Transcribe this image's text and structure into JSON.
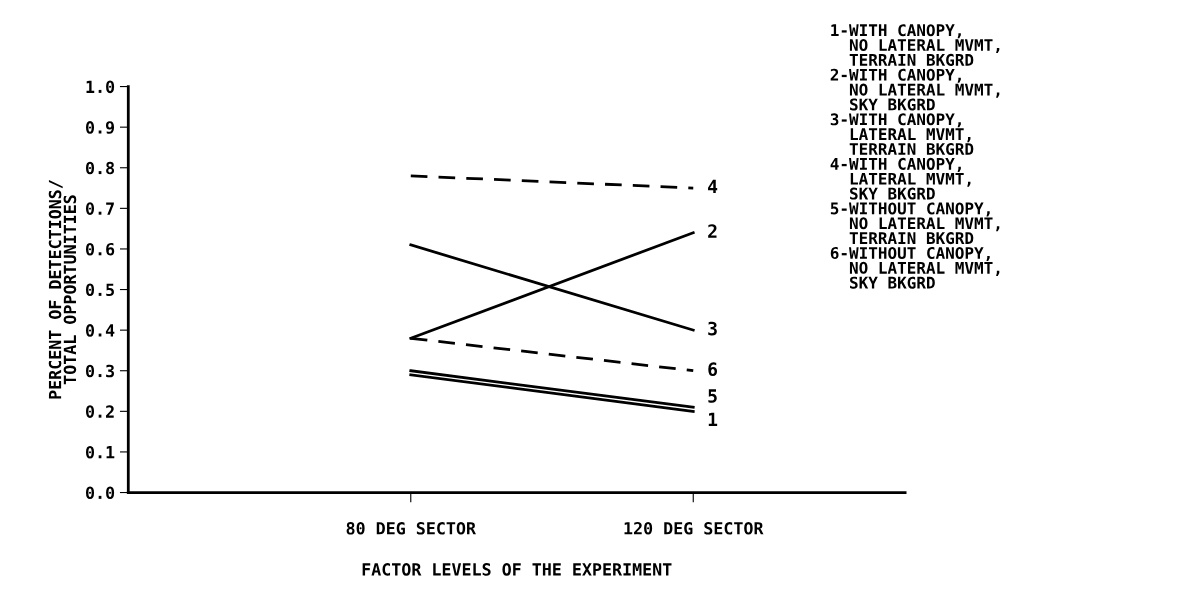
{
  "chart_data": {
    "type": "line",
    "xlabel": "FACTOR LEVELS OF THE EXPERIMENT",
    "ylabel": "PERCENT OF DETECTIONS/\nTOTAL OPPORTUNITIES",
    "categories": [
      "80 DEG SECTOR",
      "120 DEG SECTOR"
    ],
    "series": [
      {
        "name": "1",
        "color": "#000000",
        "line_style": "solid",
        "values": [
          0.29,
          0.2
        ]
      },
      {
        "name": "2",
        "color": "#000000",
        "line_style": "solid",
        "values": [
          0.38,
          0.64
        ]
      },
      {
        "name": "3",
        "color": "#000000",
        "line_style": "solid",
        "values": [
          0.61,
          0.4
        ]
      },
      {
        "name": "4",
        "color": "#000000",
        "line_style": "dashed",
        "values": [
          0.78,
          0.75
        ]
      },
      {
        "name": "5",
        "color": "#000000",
        "line_style": "solid",
        "values": [
          0.3,
          0.21
        ]
      },
      {
        "name": "6",
        "color": "#000000",
        "line_style": "dashed",
        "values": [
          0.38,
          0.3
        ]
      }
    ],
    "ylim": [
      0,
      1.0
    ],
    "yticks": [
      {
        "value": 0,
        "label": "0.0"
      },
      0.1,
      0.2,
      0.3,
      0.4,
      0.5,
      0.6,
      0.7,
      0.8,
      0.9,
      {
        "value": 1.0,
        "label": "1.0"
      }
    ],
    "grid": false,
    "legend": false,
    "marker": "none",
    "annotations": [
      "1-WITH CANOPY,\n  NO LATERAL MVMT,\n  TERRAIN BKGRD\n2-WITH CANOPY,\n  NO LATERAL MVMT,\n  SKY BKGRD\n3-WITH CANOPY,\n  LATERAL MVMT,\n  TERRAIN BKGRD\n4-WITH CANOPY,\n  LATERAL MVMT,\n  SKY BKGRD\n5-WITHOUT CANOPY,\n  NO LATERAL MVMT,\n  TERRAIN BKGRD\n6-WITHOUT CANOPY,\n  NO LATERAL MVMT,\n  SKY BKGRD"
    ]
  }
}
